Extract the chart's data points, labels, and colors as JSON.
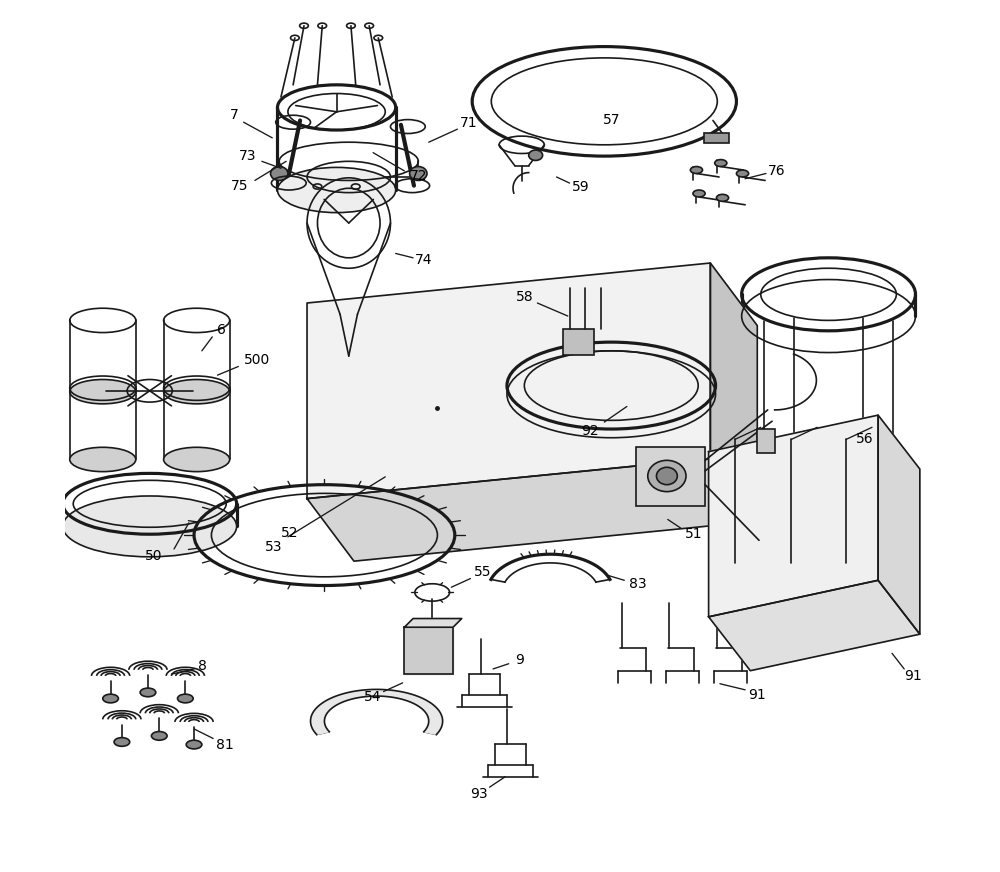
{
  "background_color": "#ffffff",
  "line_color": "#1a1a1a",
  "line_width": 1.2,
  "figsize": [
    10.0,
    8.72
  ],
  "dpi": 100
}
